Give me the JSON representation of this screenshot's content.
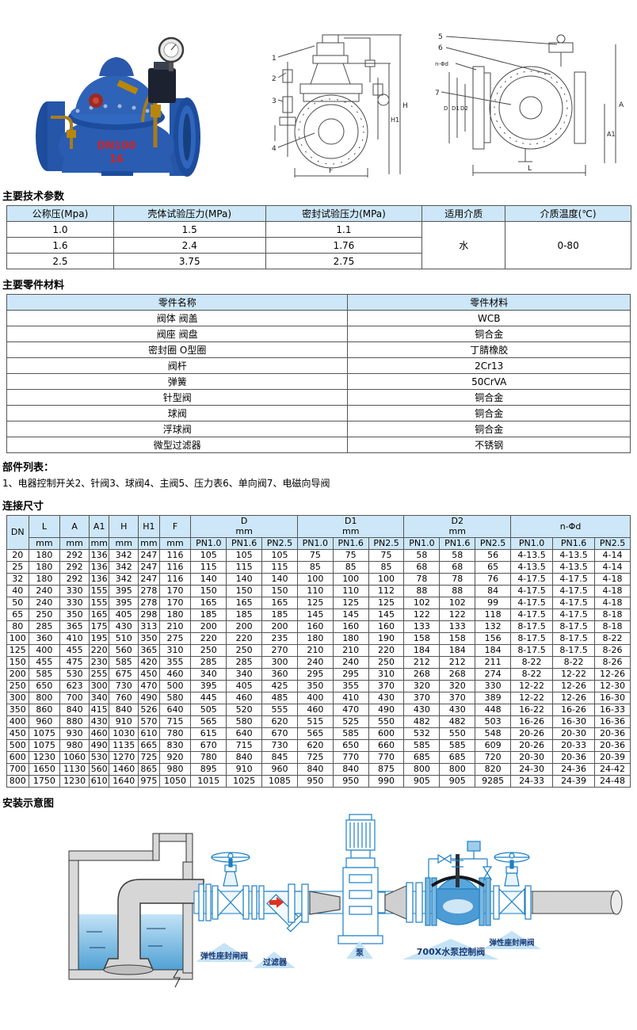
{
  "sections": {
    "tech": {
      "title": "主要技术参数"
    },
    "materials": {
      "title": "主要零件材料"
    },
    "parts": {
      "title": "部件列表：",
      "text": "1、电器控制开关2、针阀3、球阀4、主阀5、压力表6、单向阀7、电磁向导阀"
    },
    "dims": {
      "title": "连接尺寸"
    },
    "install": {
      "title": "安装示意图"
    }
  },
  "tech_table": {
    "headers": [
      "公称压(Mpa)",
      "壳体试验压力(MPa)",
      "密封试验压力(MPa)",
      "适用介质",
      "介质温度(℃)"
    ],
    "rows": [
      [
        "1.0",
        "1.5",
        "1.1"
      ],
      [
        "1.6",
        "2.4",
        "1.76"
      ],
      [
        "2.5",
        "3.75",
        "2.75"
      ]
    ],
    "medium": "水",
    "temp": "0-80"
  },
  "materials_table": {
    "headers": [
      "零件名称",
      "零件材料"
    ],
    "rows": [
      [
        "阀体 阀盖",
        "WCB"
      ],
      [
        "阀座 阀盘",
        "铜合金"
      ],
      [
        "密封圈 O型圈",
        "丁腈橡胶"
      ],
      [
        "阀杆",
        "2Cr13"
      ],
      [
        "弹簧",
        "50CrVA"
      ],
      [
        "针型阀",
        "铜合金"
      ],
      [
        "球阀",
        "铜合金"
      ],
      [
        "浮球阀",
        "铜合金"
      ],
      [
        "微型过滤器",
        "不锈钢"
      ]
    ]
  },
  "dims_table": {
    "dn": "DN",
    "letter_cols": [
      "L",
      "A",
      "A1",
      "H",
      "H1",
      "F"
    ],
    "unit": "mm",
    "groups": [
      "D",
      "D1",
      "D2"
    ],
    "nfd": "n-Φd",
    "pn": [
      "PN1.0",
      "PN1.6",
      "PN2.5"
    ],
    "rows": [
      [
        "20",
        "180",
        "292",
        "136",
        "342",
        "247",
        "116",
        "105",
        "105",
        "105",
        "75",
        "75",
        "75",
        "58",
        "58",
        "56",
        "4-13.5",
        "4-13.5",
        "4-14"
      ],
      [
        "25",
        "180",
        "292",
        "136",
        "342",
        "247",
        "116",
        "115",
        "115",
        "115",
        "85",
        "85",
        "85",
        "68",
        "68",
        "65",
        "4-13.5",
        "4-13.5",
        "4-14"
      ],
      [
        "32",
        "180",
        "292",
        "136",
        "342",
        "247",
        "116",
        "140",
        "140",
        "140",
        "100",
        "100",
        "100",
        "78",
        "78",
        "76",
        "4-17.5",
        "4-17.5",
        "4-18"
      ],
      [
        "40",
        "240",
        "330",
        "155",
        "395",
        "278",
        "170",
        "150",
        "150",
        "150",
        "110",
        "110",
        "112",
        "88",
        "88",
        "84",
        "4-17.5",
        "4-17.5",
        "4-18"
      ],
      [
        "50",
        "240",
        "330",
        "155",
        "395",
        "278",
        "170",
        "165",
        "165",
        "165",
        "125",
        "125",
        "125",
        "102",
        "102",
        "99",
        "4-17.5",
        "4-17.5",
        "4-18"
      ],
      [
        "65",
        "250",
        "350",
        "165",
        "405",
        "298",
        "180",
        "185",
        "185",
        "185",
        "145",
        "145",
        "145",
        "122",
        "122",
        "118",
        "4-17.5",
        "4-17.5",
        "8-18"
      ],
      [
        "80",
        "285",
        "365",
        "175",
        "430",
        "313",
        "210",
        "200",
        "200",
        "200",
        "160",
        "160",
        "160",
        "133",
        "133",
        "132",
        "8-17.5",
        "8-17.5",
        "8-18"
      ],
      [
        "100",
        "360",
        "410",
        "195",
        "510",
        "350",
        "275",
        "220",
        "220",
        "235",
        "180",
        "180",
        "190",
        "158",
        "158",
        "156",
        "8-17.5",
        "8-17.5",
        "8-22"
      ],
      [
        "125",
        "400",
        "455",
        "220",
        "560",
        "365",
        "310",
        "250",
        "250",
        "270",
        "210",
        "210",
        "220",
        "184",
        "184",
        "184",
        "8-17.5",
        "8-17.5",
        "8-26"
      ],
      [
        "150",
        "455",
        "475",
        "230",
        "585",
        "420",
        "355",
        "285",
        "285",
        "300",
        "240",
        "240",
        "250",
        "212",
        "212",
        "211",
        "8-22",
        "8-22",
        "8-26"
      ],
      [
        "200",
        "585",
        "530",
        "255",
        "675",
        "450",
        "460",
        "340",
        "340",
        "360",
        "295",
        "295",
        "310",
        "268",
        "268",
        "274",
        "8-22",
        "12-22",
        "12-26"
      ],
      [
        "250",
        "650",
        "623",
        "300",
        "730",
        "470",
        "500",
        "395",
        "405",
        "425",
        "350",
        "355",
        "370",
        "320",
        "320",
        "330",
        "12-22",
        "12-26",
        "12-30"
      ],
      [
        "300",
        "800",
        "700",
        "340",
        "760",
        "490",
        "580",
        "445",
        "460",
        "485",
        "400",
        "410",
        "430",
        "370",
        "370",
        "389",
        "12-22",
        "12-26",
        "16-30"
      ],
      [
        "350",
        "860",
        "840",
        "415",
        "840",
        "526",
        "640",
        "505",
        "520",
        "555",
        "460",
        "470",
        "490",
        "430",
        "430",
        "448",
        "16-22",
        "16-26",
        "16-33"
      ],
      [
        "400",
        "960",
        "880",
        "430",
        "910",
        "570",
        "715",
        "565",
        "580",
        "620",
        "515",
        "525",
        "550",
        "482",
        "482",
        "503",
        "16-26",
        "16-30",
        "16-36"
      ],
      [
        "450",
        "1075",
        "930",
        "460",
        "1030",
        "610",
        "780",
        "615",
        "640",
        "670",
        "565",
        "585",
        "600",
        "532",
        "550",
        "548",
        "20-26",
        "20-30",
        "20-36"
      ],
      [
        "500",
        "1075",
        "980",
        "490",
        "1135",
        "665",
        "830",
        "670",
        "715",
        "730",
        "620",
        "650",
        "660",
        "585",
        "585",
        "609",
        "20-26",
        "20-33",
        "20-36"
      ],
      [
        "600",
        "1230",
        "1060",
        "530",
        "1270",
        "725",
        "920",
        "780",
        "840",
        "845",
        "725",
        "770",
        "770",
        "685",
        "685",
        "720",
        "20-30",
        "20-36",
        "20-39"
      ],
      [
        "700",
        "1650",
        "1130",
        "560",
        "1460",
        "865",
        "980",
        "895",
        "910",
        "960",
        "840",
        "840",
        "875",
        "800",
        "800",
        "820",
        "24-30",
        "24-36",
        "24-42"
      ],
      [
        "800",
        "1750",
        "1230",
        "610",
        "1640",
        "975",
        "1050",
        "1015",
        "1025",
        "1085",
        "950",
        "950",
        "990",
        "905",
        "905",
        "9285",
        "24-33",
        "24-39",
        "24-48"
      ]
    ]
  },
  "photo": {
    "marking_line1": "DN100",
    "marking_line2": "16"
  },
  "drawing_front": {
    "callouts": [
      "1",
      "2",
      "3",
      "4"
    ],
    "dim_h1": "H1",
    "dim_h": "H",
    "dim_f": "F"
  },
  "drawing_side": {
    "callouts": [
      "5",
      "6",
      "7"
    ],
    "dim_nfd": "n-Φd",
    "dim_d": "D",
    "dim_d1": "D1",
    "dim_d2": "D2",
    "dim_a": "A",
    "dim_a1": "A1",
    "dim_l": "L"
  },
  "diagram": {
    "labels": [
      "弹性座封闸阀",
      "过滤器",
      "泵",
      "700X水泵控制阀",
      "弹性座封闸阀"
    ]
  },
  "colors": {
    "table_header_bg": "#cde7f8",
    "valve_blue": "#2a5cb2",
    "diagram_line_blue": "#1d7fc4",
    "label_text": "#173a78",
    "marking_red": "#d42222"
  }
}
